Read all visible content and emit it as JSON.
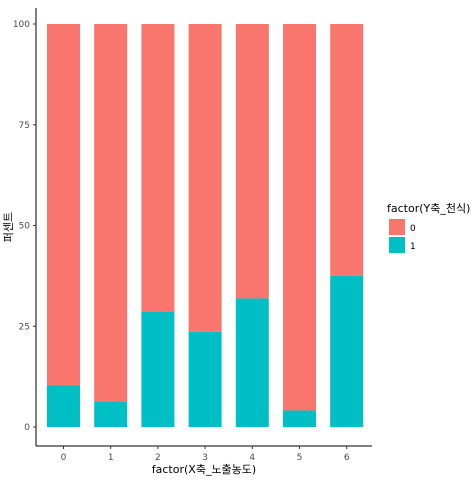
{
  "chart_data": {
    "type": "bar",
    "stacked": true,
    "categories": [
      "0",
      "1",
      "2",
      "3",
      "4",
      "5",
      "6"
    ],
    "series": [
      {
        "name": "0",
        "color": "#F8766D",
        "values": [
          89.7,
          93.6,
          71.3,
          76.4,
          68.1,
          95.9,
          62.5
        ]
      },
      {
        "name": "1",
        "color": "#00BFC4",
        "values": [
          10.3,
          6.4,
          28.7,
          23.6,
          31.9,
          4.1,
          37.5
        ]
      }
    ],
    "stack_order": [
      "1",
      "0"
    ],
    "xlabel": "factor(X축_노출농도)",
    "ylabel": "퍼센트",
    "ylim": [
      0,
      100
    ],
    "yticks": [
      0,
      25,
      50,
      75,
      100
    ],
    "grid": false,
    "legend": {
      "title": "factor(Y축_천식)",
      "placement": "right"
    }
  }
}
